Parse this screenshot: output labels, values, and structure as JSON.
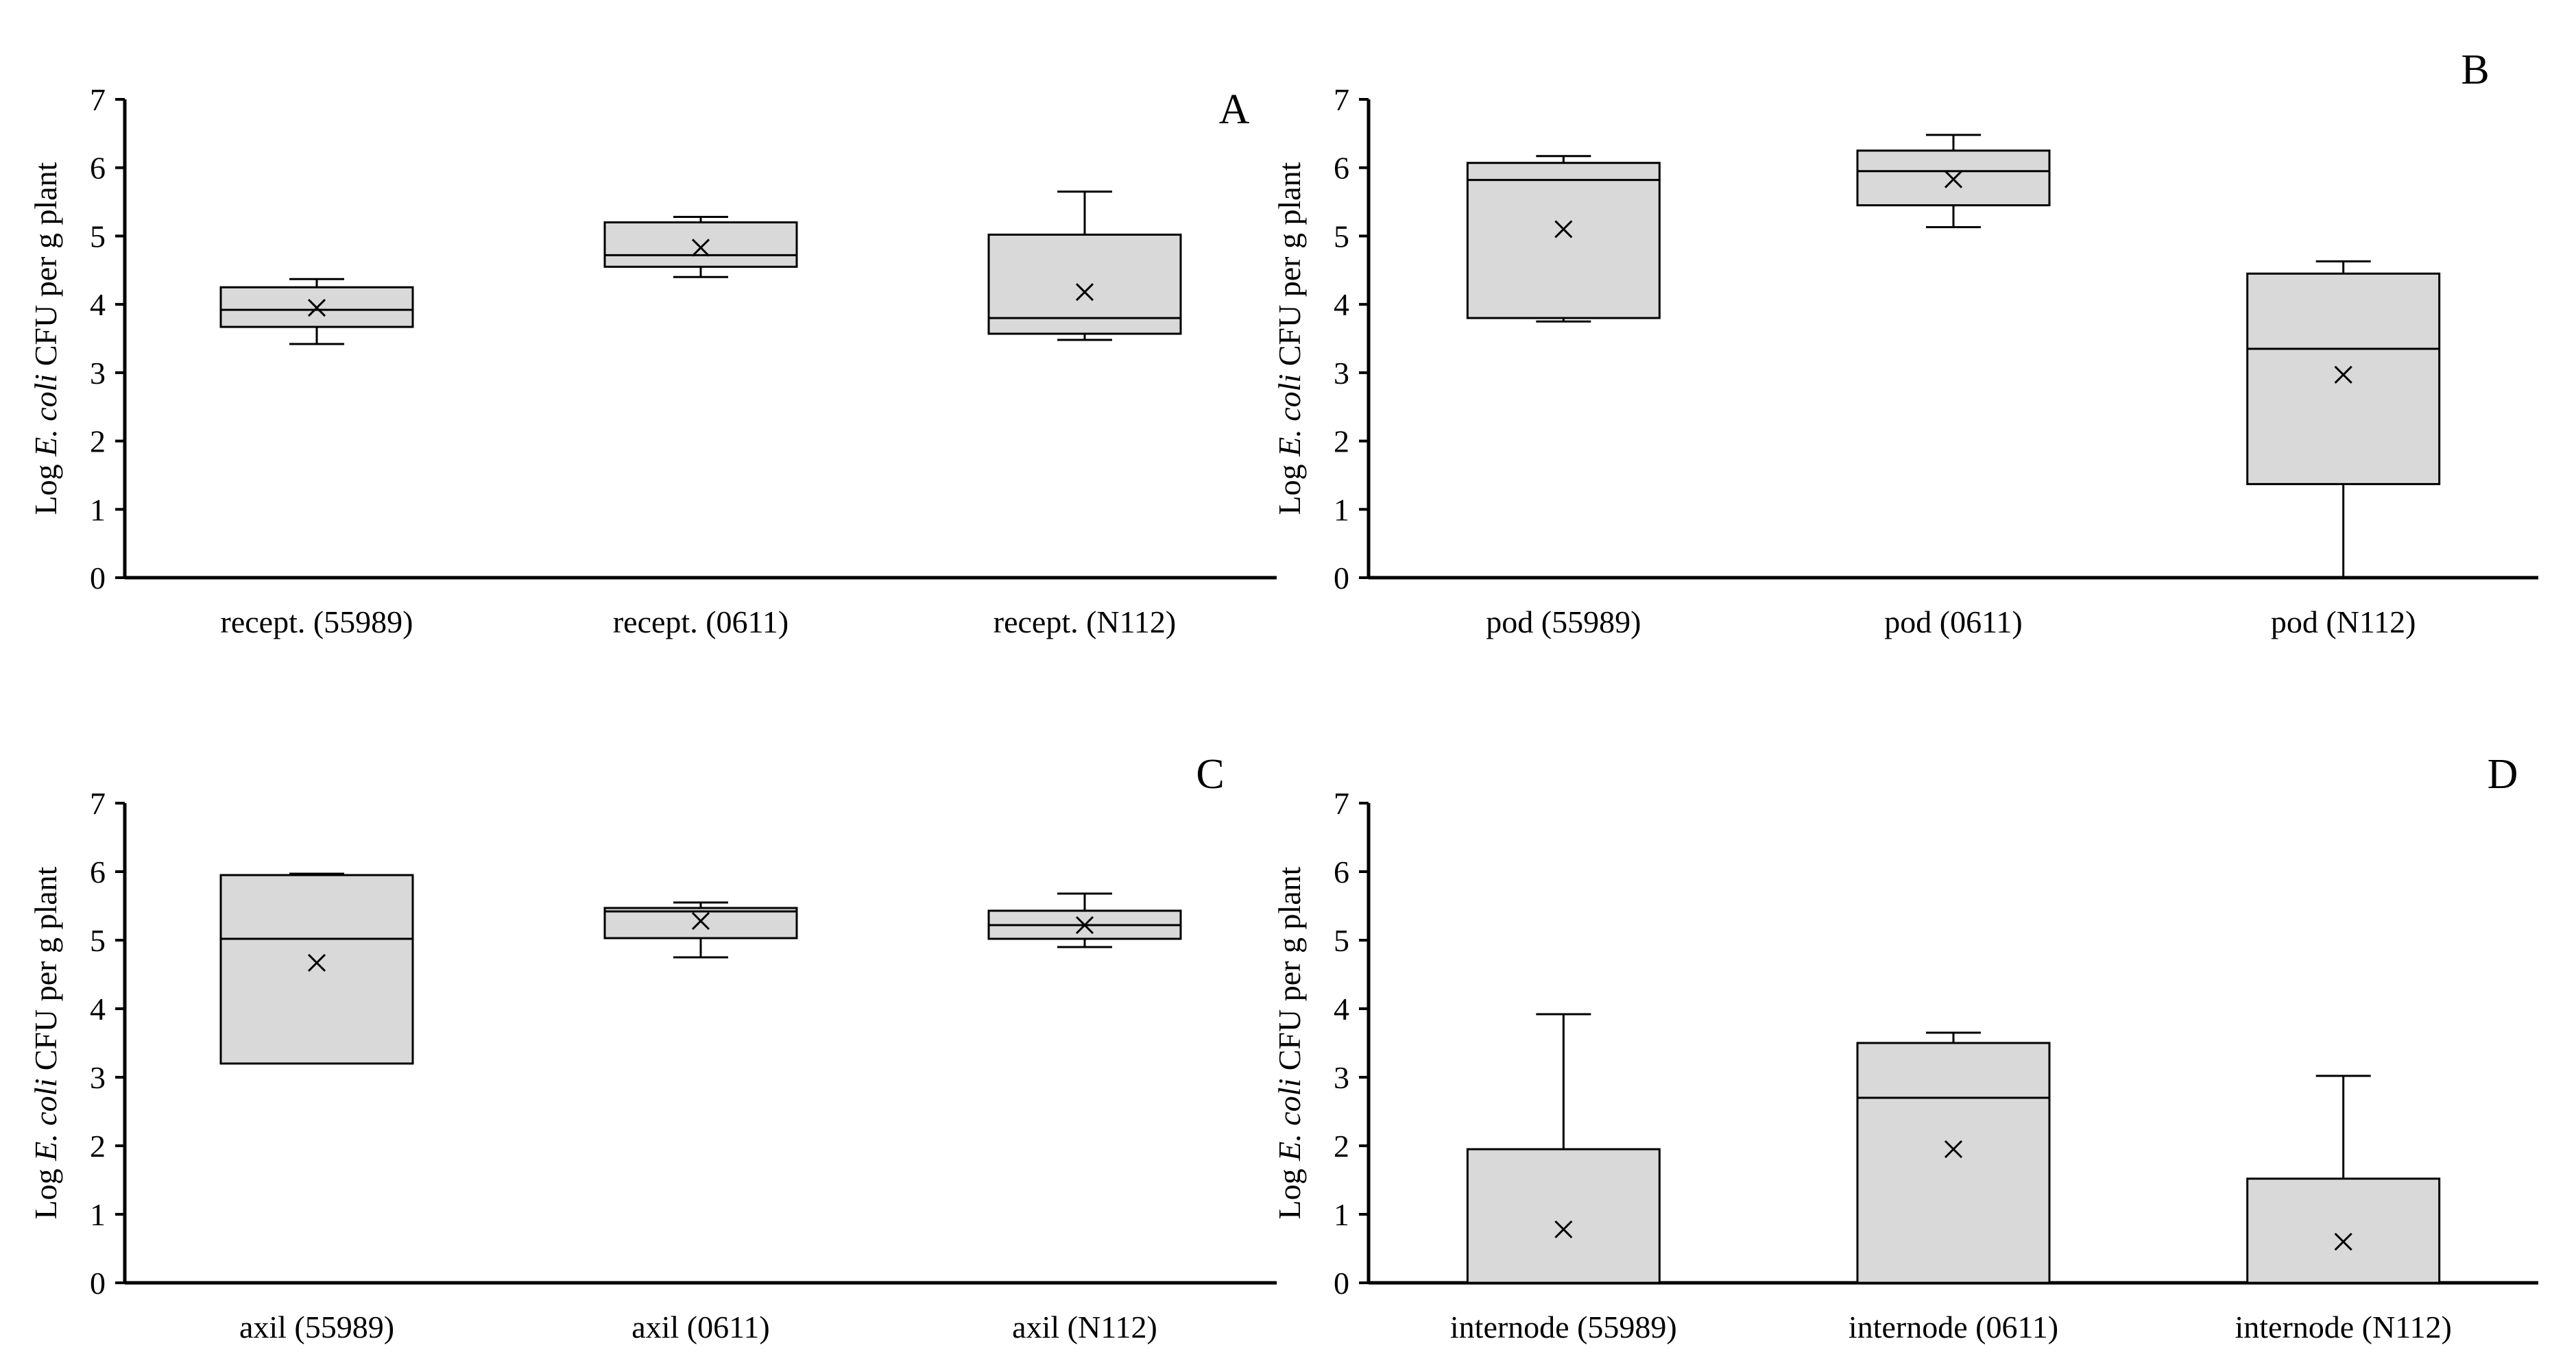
{
  "chart_data": [
    {
      "panel": "A",
      "type": "box",
      "ylabel_prefix": "Log ",
      "ylabel_italic": "E. coli",
      "ylabel_suffix": " CFU per g plant",
      "ylim": [
        0,
        7
      ],
      "yticks": [
        "0",
        "1",
        "2",
        "3",
        "4",
        "5",
        "6",
        "7"
      ],
      "categories": [
        "recept. (55989)",
        "recept. (0611)",
        "recept. (N112)"
      ],
      "boxes": [
        {
          "min": 3.42,
          "q1": 3.67,
          "median": 3.92,
          "q3": 4.25,
          "max": 4.37,
          "mean": 3.95
        },
        {
          "min": 4.4,
          "q1": 4.55,
          "median": 4.72,
          "q3": 5.2,
          "max": 5.28,
          "mean": 4.83
        },
        {
          "min": 3.48,
          "q1": 3.57,
          "median": 3.8,
          "q3": 5.02,
          "max": 5.65,
          "mean": 4.18
        }
      ]
    },
    {
      "panel": "B",
      "type": "box",
      "ylabel_prefix": "Log ",
      "ylabel_italic": "E. coli",
      "ylabel_suffix": " CFU per g plant",
      "ylim": [
        0,
        7
      ],
      "yticks": [
        "0",
        "1",
        "2",
        "3",
        "4",
        "5",
        "6",
        "7"
      ],
      "categories": [
        "pod (55989)",
        "pod (0611)",
        "pod (N112)"
      ],
      "boxes": [
        {
          "min": 3.75,
          "q1": 3.8,
          "median": 5.82,
          "q3": 6.07,
          "max": 6.17,
          "mean": 5.1
        },
        {
          "min": 5.13,
          "q1": 5.45,
          "median": 5.95,
          "q3": 6.25,
          "max": 6.48,
          "mean": 5.83
        },
        {
          "min": 0.0,
          "q1": 1.37,
          "median": 3.35,
          "q3": 4.45,
          "max": 4.63,
          "mean": 2.97
        }
      ]
    },
    {
      "panel": "C",
      "type": "box",
      "ylabel_prefix": "Log ",
      "ylabel_italic": "E. coli",
      "ylabel_suffix": " CFU per g plant",
      "ylim": [
        0,
        7
      ],
      "yticks": [
        "0",
        "1",
        "2",
        "3",
        "4",
        "5",
        "6",
        "7"
      ],
      "categories": [
        "axil (55989)",
        "axil (0611)",
        "axil (N112)"
      ],
      "boxes": [
        {
          "min": 3.2,
          "q1": 3.2,
          "median": 5.02,
          "q3": 5.95,
          "max": 5.97,
          "mean": 4.67
        },
        {
          "min": 4.75,
          "q1": 5.03,
          "median": 5.42,
          "q3": 5.47,
          "max": 5.55,
          "mean": 5.28
        },
        {
          "min": 4.9,
          "q1": 5.02,
          "median": 5.22,
          "q3": 5.43,
          "max": 5.68,
          "mean": 5.22
        }
      ]
    },
    {
      "panel": "D",
      "type": "box",
      "ylabel_prefix": "Log ",
      "ylabel_italic": "E. coli",
      "ylabel_suffix": " CFU per g plant",
      "ylim": [
        0,
        7
      ],
      "yticks": [
        "0",
        "1",
        "2",
        "3",
        "4",
        "5",
        "6",
        "7"
      ],
      "categories": [
        "internode (55989)",
        "internode (0611)",
        "internode (N112)"
      ],
      "boxes": [
        {
          "min": 0.0,
          "q1": 0.0,
          "median": 0.0,
          "q3": 1.95,
          "max": 3.92,
          "mean": 0.78
        },
        {
          "min": 0.0,
          "q1": 0.0,
          "median": 2.7,
          "q3": 3.5,
          "max": 3.65,
          "mean": 1.95
        },
        {
          "min": 0.0,
          "q1": 0.0,
          "median": 0.0,
          "q3": 1.52,
          "max": 3.02,
          "mean": 0.6
        }
      ]
    }
  ],
  "colors": {
    "box_fill": "#d9d9d9",
    "stroke": "#000000"
  }
}
